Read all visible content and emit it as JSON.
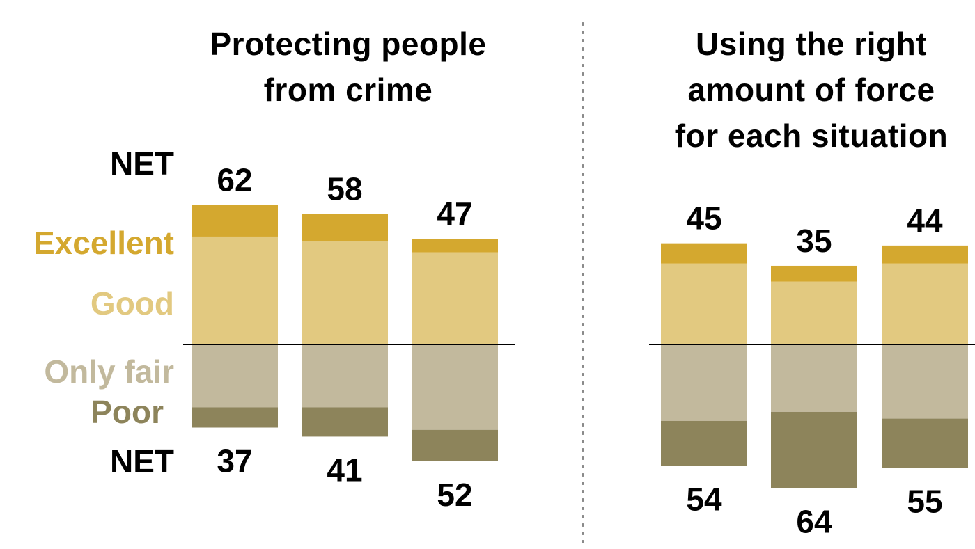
{
  "legend": {
    "net_top": "NET",
    "net_bottom": "NET",
    "excellent": "Excellent",
    "good": "Good",
    "only_fair": "Only fair",
    "poor": "Poor"
  },
  "colors": {
    "excellent": "#D4A82F",
    "good": "#E2C980",
    "only_fair": "#C2B99D",
    "poor": "#8D845B"
  },
  "chart_data": [
    {
      "type": "bar",
      "title": "Protecting people from crime",
      "title_lines": [
        "Protecting people",
        "from crime"
      ],
      "categories": [
        "",
        "",
        ""
      ],
      "series": [
        {
          "name": "Excellent",
          "values": [
            14,
            12,
            6
          ]
        },
        {
          "name": "Good",
          "values": [
            48,
            46,
            41
          ]
        },
        {
          "name": "Only fair",
          "values": [
            28,
            28,
            38
          ]
        },
        {
          "name": "Poor",
          "values": [
            9,
            13,
            14
          ]
        }
      ],
      "net_positive": [
        62,
        58,
        47
      ],
      "net_negative": [
        37,
        41,
        52
      ]
    },
    {
      "type": "bar",
      "title": "Using the right amount of force for each situation",
      "title_lines": [
        "Using the right",
        "amount of force",
        "for each situation"
      ],
      "categories": [
        "",
        "",
        ""
      ],
      "series": [
        {
          "name": "Excellent",
          "values": [
            9,
            7,
            8
          ]
        },
        {
          "name": "Good",
          "values": [
            36,
            28,
            36
          ]
        },
        {
          "name": "Only fair",
          "values": [
            34,
            30,
            33
          ]
        },
        {
          "name": "Poor",
          "values": [
            20,
            34,
            22
          ]
        }
      ],
      "net_positive": [
        45,
        35,
        44
      ],
      "net_negative": [
        54,
        64,
        55
      ]
    }
  ]
}
